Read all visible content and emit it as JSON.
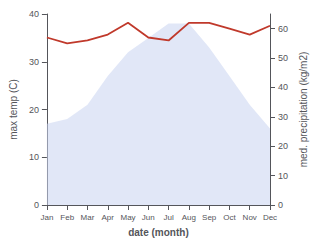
{
  "chart_data": {
    "type": "line",
    "xlabel": "date (month)",
    "ylabel": "max temp (C)",
    "y2label": "med. precipitation (kg/m2)",
    "categories": [
      "Jan",
      "Feb",
      "Mar",
      "Apr",
      "May",
      "Jun",
      "Jul",
      "Aug",
      "Sep",
      "Oct",
      "Nov",
      "Dec"
    ],
    "series": [
      {
        "type": "area",
        "color": "#c8d4f0",
        "values": [
          17,
          18,
          21,
          27,
          32,
          35,
          38,
          38,
          33,
          27,
          21,
          16
        ]
      },
      {
        "type": "line",
        "color": "#c0392b",
        "axis": "y2",
        "values": [
          57,
          55,
          56,
          58,
          62,
          57,
          56,
          62,
          62,
          60,
          58,
          61
        ]
      }
    ],
    "ylim": [
      0,
      40
    ],
    "yticks": [
      0,
      10,
      20,
      30,
      40
    ],
    "y2lim": [
      0,
      65
    ],
    "y2ticks": [
      0,
      10,
      20,
      30,
      40,
      50,
      60
    ],
    "grid": false
  }
}
